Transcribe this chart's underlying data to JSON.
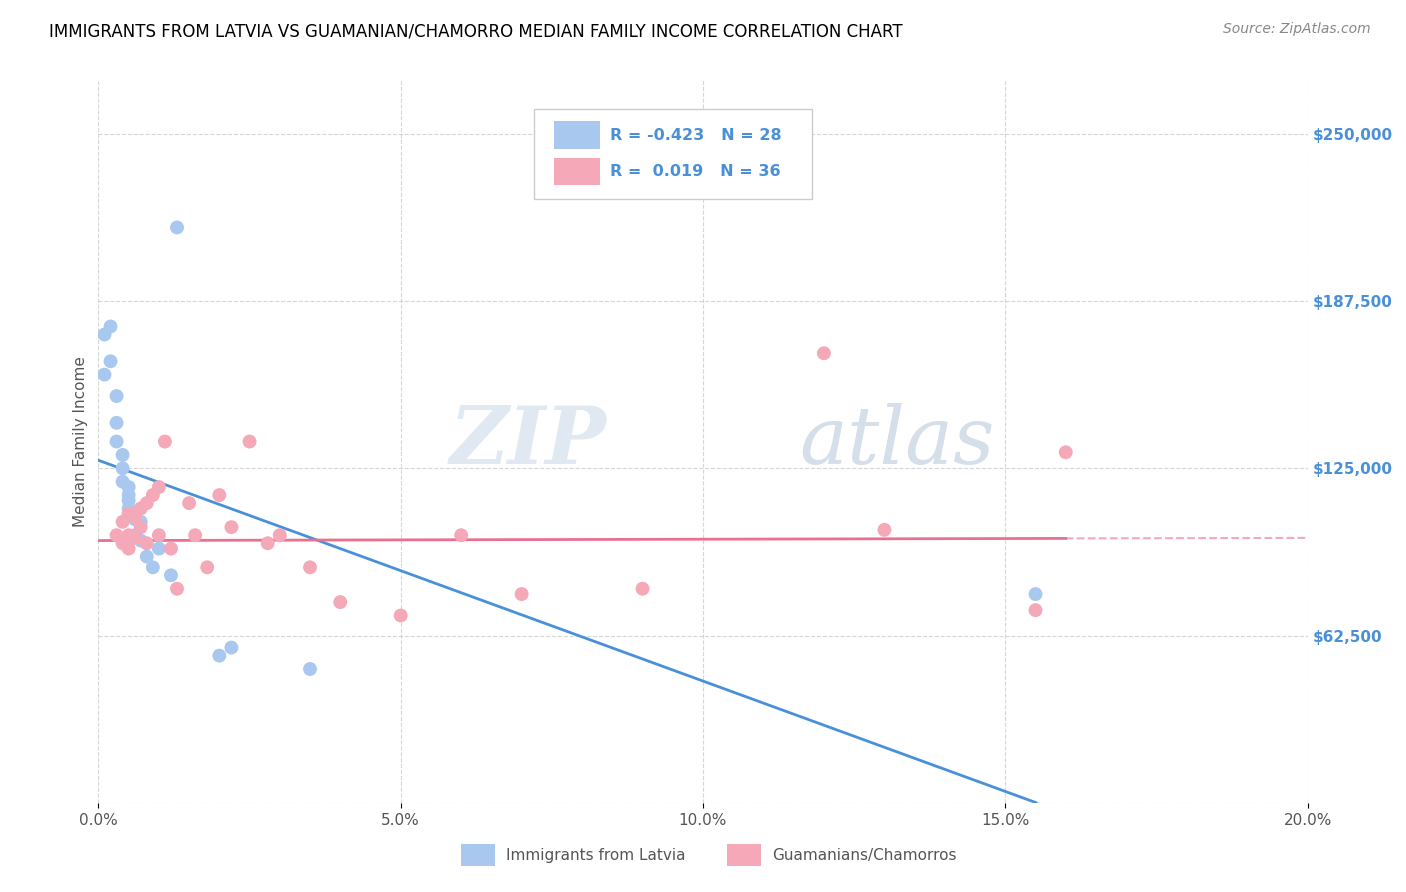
{
  "title": "IMMIGRANTS FROM LATVIA VS GUAMANIAN/CHAMORRO MEDIAN FAMILY INCOME CORRELATION CHART",
  "source": "Source: ZipAtlas.com",
  "xlabel_ticks": [
    "0.0%",
    "5.0%",
    "10.0%",
    "15.0%",
    "20.0%"
  ],
  "xlabel_vals": [
    0.0,
    0.05,
    0.1,
    0.15,
    0.2
  ],
  "ylabel": "Median Family Income",
  "yticks": [
    0,
    62500,
    125000,
    187500,
    250000
  ],
  "ytick_labels": [
    "",
    "$62,500",
    "$125,000",
    "$187,500",
    "$250,000"
  ],
  "xlim": [
    0.0,
    0.2
  ],
  "ylim": [
    0,
    270000
  ],
  "legend_r_latvia": "-0.423",
  "legend_n_latvia": "28",
  "legend_r_guam": "0.019",
  "legend_n_guam": "36",
  "color_latvia": "#a8c8f0",
  "color_guam": "#f4a8b8",
  "color_latvia_line": "#4a90d9",
  "color_guam_line": "#e87090",
  "watermark_zip": "ZIP",
  "watermark_atlas": "atlas",
  "latvia_x": [
    0.001,
    0.001,
    0.002,
    0.002,
    0.003,
    0.003,
    0.003,
    0.004,
    0.004,
    0.004,
    0.005,
    0.005,
    0.005,
    0.005,
    0.006,
    0.006,
    0.006,
    0.007,
    0.007,
    0.008,
    0.009,
    0.01,
    0.012,
    0.013,
    0.02,
    0.022,
    0.035,
    0.155
  ],
  "latvia_y": [
    175000,
    160000,
    178000,
    165000,
    152000,
    142000,
    135000,
    130000,
    125000,
    120000,
    118000,
    115000,
    113000,
    110000,
    108000,
    106000,
    100000,
    105000,
    98000,
    92000,
    88000,
    95000,
    85000,
    215000,
    55000,
    58000,
    50000,
    78000
  ],
  "guam_x": [
    0.003,
    0.004,
    0.004,
    0.005,
    0.005,
    0.005,
    0.006,
    0.006,
    0.007,
    0.007,
    0.008,
    0.008,
    0.009,
    0.01,
    0.01,
    0.011,
    0.012,
    0.013,
    0.015,
    0.016,
    0.018,
    0.02,
    0.022,
    0.025,
    0.028,
    0.03,
    0.035,
    0.04,
    0.05,
    0.06,
    0.07,
    0.09,
    0.12,
    0.13,
    0.155,
    0.16
  ],
  "guam_y": [
    100000,
    105000,
    97000,
    108000,
    100000,
    95000,
    107000,
    99000,
    110000,
    103000,
    97000,
    112000,
    115000,
    118000,
    100000,
    135000,
    95000,
    80000,
    112000,
    100000,
    88000,
    115000,
    103000,
    135000,
    97000,
    100000,
    88000,
    75000,
    70000,
    100000,
    78000,
    80000,
    168000,
    102000,
    72000,
    131000
  ]
}
